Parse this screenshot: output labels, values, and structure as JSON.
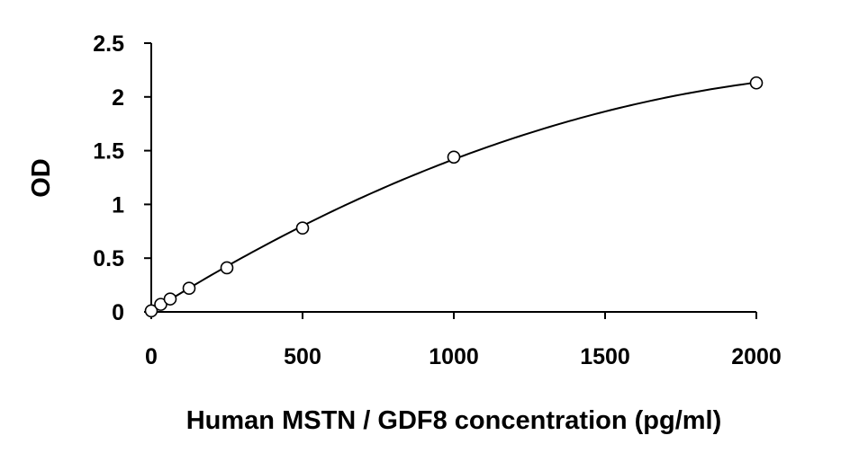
{
  "chart_data": {
    "type": "scatter",
    "title": "",
    "xlabel": "Human MSTN / GDF8 concentration (pg/ml)",
    "ylabel": "OD",
    "xlim": [
      0,
      2000
    ],
    "ylim": [
      0,
      2.5
    ],
    "x_ticks": [
      "0",
      "500",
      "1000",
      "1500",
      "2000"
    ],
    "y_ticks": [
      "0",
      "0.5",
      "1",
      "1.5",
      "2",
      "2.5"
    ],
    "grid": false,
    "legend": "none",
    "trendline": "fitted curve",
    "marker": "open-circle",
    "series": [
      {
        "x": [
          0,
          31.25,
          62.5,
          125,
          250,
          500,
          1000,
          2000
        ],
        "y": [
          0.01,
          0.07,
          0.12,
          0.22,
          0.41,
          0.78,
          1.44,
          2.13
        ]
      }
    ],
    "colors": {
      "axis": "#000000",
      "line": "#000000",
      "marker_stroke": "#000000",
      "marker_fill": "#ffffff"
    }
  }
}
